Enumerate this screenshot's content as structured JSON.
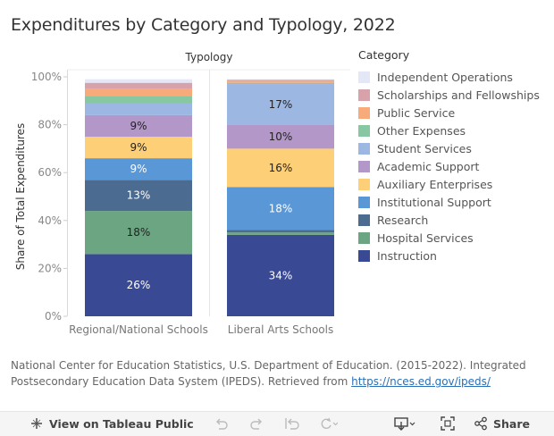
{
  "title": "Expenditures by Category and Typology, 2022",
  "legend_title": "Category",
  "source": {
    "text": "National Center for Education Statistics, U.S. Department of Education. (2015-2022). Integrated Postsecondary Education Data System (IPEDS). Retrieved from ",
    "link": "https://nces.ed.gov/ipeds/"
  },
  "toolbar": {
    "view_label": "View on Tableau Public",
    "share_label": "Share",
    "icons": [
      "tableau-logo-icon",
      "undo-icon",
      "redo-icon",
      "revert-icon",
      "refresh-icon",
      "download-icon",
      "fullscreen-icon",
      "share-icon"
    ]
  },
  "chart_data": {
    "type": "bar",
    "stacked": true,
    "top_label": "Typology",
    "ylabel": "Share of Total Expenditures",
    "xlabel": "",
    "ylim": [
      0,
      100
    ],
    "yticks": [
      "0%",
      "20%",
      "40%",
      "60%",
      "80%",
      "100%"
    ],
    "grid": false,
    "legend_position": "right",
    "categories": [
      "Regional/National Schools",
      "Liberal Arts Schools"
    ],
    "series": [
      {
        "name": "Instruction",
        "color": "#3a4993",
        "values": [
          26,
          34
        ],
        "labels": [
          "26%",
          "34%"
        ],
        "label_color": "#ffffff"
      },
      {
        "name": "Hospital Services",
        "color": "#6ba581",
        "values": [
          18,
          1
        ],
        "labels": [
          "18%",
          ""
        ],
        "label_color": "#222222"
      },
      {
        "name": "Research",
        "color": "#4c6b91",
        "values": [
          13,
          1
        ],
        "labels": [
          "13%",
          ""
        ],
        "label_color": "#ffffff"
      },
      {
        "name": "Institutional Support",
        "color": "#5a97d6",
        "values": [
          9,
          18
        ],
        "labels": [
          "9%",
          "18%"
        ],
        "label_color": "#ffffff"
      },
      {
        "name": "Auxiliary Enterprises",
        "color": "#fdd078",
        "values": [
          9,
          16
        ],
        "labels": [
          "9%",
          "16%"
        ],
        "label_color": "#222222"
      },
      {
        "name": "Academic Support",
        "color": "#b397c9",
        "values": [
          9,
          10
        ],
        "labels": [
          "9%",
          "10%"
        ],
        "label_color": "#222222"
      },
      {
        "name": "Student Services",
        "color": "#9db7e3",
        "values": [
          5,
          17
        ],
        "labels": [
          "",
          "17%"
        ],
        "label_color": "#222222"
      },
      {
        "name": "Other Expenses",
        "color": "#87c8a3",
        "values": [
          3,
          0.5
        ],
        "labels": [
          "",
          ""
        ],
        "label_color": "#222222"
      },
      {
        "name": "Public Service",
        "color": "#f8ab7a",
        "values": [
          3,
          0.8
        ],
        "labels": [
          "",
          ""
        ],
        "label_color": "#222222"
      },
      {
        "name": "Scholarships and Fellowships",
        "color": "#d8a2ab",
        "values": [
          2.5,
          0.5
        ],
        "labels": [
          "",
          ""
        ],
        "label_color": "#222222"
      },
      {
        "name": "Independent Operations",
        "color": "#e4e7f6",
        "values": [
          1.5,
          0.2
        ],
        "labels": [
          "",
          ""
        ],
        "label_color": "#222222"
      }
    ],
    "legend_order": [
      "Independent Operations",
      "Scholarships and Fellowships",
      "Public Service",
      "Other Expenses",
      "Student Services",
      "Academic Support",
      "Auxiliary Enterprises",
      "Institutional Support",
      "Research",
      "Hospital Services",
      "Instruction"
    ]
  }
}
